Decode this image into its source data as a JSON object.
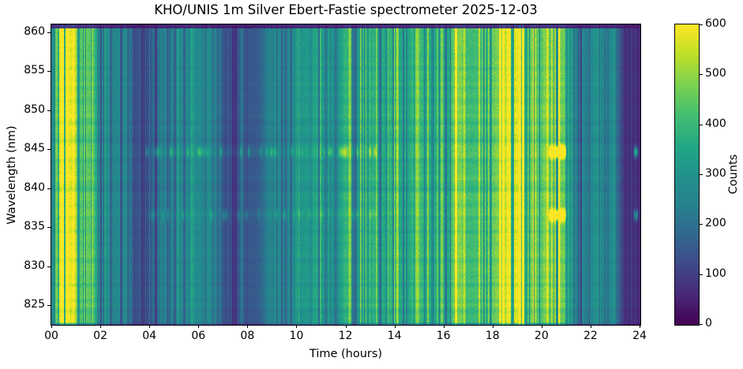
{
  "chart_data": {
    "type": "heatmap",
    "title": "KHO/UNIS 1m Silver Ebert-Fastie spectrometer 2025-12-03",
    "xlabel": "Time (hours)",
    "ylabel": "Wavelength (nm)",
    "colorbar_label": "Counts",
    "colormap": "viridis",
    "x_range_hours": [
      0,
      24
    ],
    "y_range_nm": [
      822.6,
      861.0
    ],
    "counts_range": [
      0,
      600
    ],
    "grid": false,
    "x_axis": {
      "tick_hours": [
        0,
        2,
        4,
        6,
        8,
        10,
        12,
        14,
        16,
        18,
        20,
        22,
        24
      ],
      "tick_labels": [
        "00",
        "02",
        "04",
        "06",
        "08",
        "10",
        "12",
        "14",
        "16",
        "18",
        "20",
        "22",
        "24"
      ]
    },
    "y_axis": {
      "tick_nm": [
        825,
        830,
        835,
        840,
        845,
        850,
        855,
        860
      ],
      "tick_labels": [
        "825",
        "830",
        "835",
        "840",
        "845",
        "850",
        "855",
        "860"
      ]
    },
    "colorbar": {
      "tick_values": [
        0,
        100,
        200,
        300,
        400,
        500,
        600
      ],
      "tick_labels": [
        "0",
        "100",
        "200",
        "300",
        "400",
        "500",
        "600"
      ]
    },
    "colormap_stops": [
      "#440154",
      "#482878",
      "#3e4989",
      "#31688e",
      "#26828e",
      "#21918c",
      "#22a884",
      "#44bf70",
      "#7ad151",
      "#bddf26",
      "#fde725"
    ],
    "background_profile_t_counts": [
      [
        0.0,
        380
      ],
      [
        0.15,
        430
      ],
      [
        0.3,
        520
      ],
      [
        0.45,
        580
      ],
      [
        0.9,
        575
      ],
      [
        1.1,
        520
      ],
      [
        1.25,
        470
      ],
      [
        1.45,
        430
      ],
      [
        1.6,
        480
      ],
      [
        1.75,
        400
      ],
      [
        1.9,
        340
      ],
      [
        2.1,
        300
      ],
      [
        2.3,
        310
      ],
      [
        2.45,
        270
      ],
      [
        2.6,
        250
      ],
      [
        2.8,
        270
      ],
      [
        3.0,
        250
      ],
      [
        3.15,
        200
      ],
      [
        3.3,
        150
      ],
      [
        3.7,
        135
      ],
      [
        4.0,
        145
      ],
      [
        4.15,
        175
      ],
      [
        4.3,
        250
      ],
      [
        4.45,
        215
      ],
      [
        4.6,
        265
      ],
      [
        4.75,
        215
      ],
      [
        4.95,
        240
      ],
      [
        5.2,
        280
      ],
      [
        5.5,
        260
      ],
      [
        5.8,
        280
      ],
      [
        6.1,
        260
      ],
      [
        6.4,
        275
      ],
      [
        6.6,
        240
      ],
      [
        6.8,
        185
      ],
      [
        7.0,
        140
      ],
      [
        7.3,
        135
      ],
      [
        7.55,
        120
      ],
      [
        7.8,
        150
      ],
      [
        8.0,
        130
      ],
      [
        8.3,
        165
      ],
      [
        8.6,
        210
      ],
      [
        9.0,
        250
      ],
      [
        9.5,
        280
      ],
      [
        10.0,
        295
      ],
      [
        10.5,
        305
      ],
      [
        11.0,
        315
      ],
      [
        11.5,
        325
      ],
      [
        12.0,
        335
      ],
      [
        12.5,
        345
      ],
      [
        13.0,
        355
      ],
      [
        13.5,
        360
      ],
      [
        14.0,
        370
      ],
      [
        14.5,
        375
      ],
      [
        15.0,
        380
      ],
      [
        15.5,
        390
      ],
      [
        16.0,
        400
      ],
      [
        16.5,
        420
      ],
      [
        17.0,
        410
      ],
      [
        17.5,
        430
      ],
      [
        18.0,
        425
      ],
      [
        18.35,
        445
      ],
      [
        18.55,
        520
      ],
      [
        18.7,
        595
      ],
      [
        19.1,
        595
      ],
      [
        19.3,
        540
      ],
      [
        19.5,
        480
      ],
      [
        19.7,
        500
      ],
      [
        19.9,
        470
      ],
      [
        20.1,
        490
      ],
      [
        20.4,
        480
      ],
      [
        20.7,
        465
      ],
      [
        20.95,
        450
      ],
      [
        21.1,
        350
      ],
      [
        21.25,
        245
      ],
      [
        21.5,
        230
      ],
      [
        21.8,
        250
      ],
      [
        22.1,
        270
      ],
      [
        22.4,
        290
      ],
      [
        22.7,
        265
      ],
      [
        23.0,
        255
      ],
      [
        23.1,
        180
      ],
      [
        23.25,
        95
      ],
      [
        23.5,
        75
      ],
      [
        24.0,
        80
      ]
    ],
    "emission_lines": [
      {
        "wavelength_nm": 844.7,
        "sigma_nm": 0.45,
        "periods": [
          {
            "start": 3.8,
            "end": 13.3,
            "peak_counts": 160,
            "style": "dashed"
          },
          {
            "start": 20.28,
            "end": 21.0,
            "peak_counts": 640,
            "style": "solid"
          },
          {
            "start": 23.72,
            "end": 23.95,
            "peak_counts": 260,
            "style": "solid"
          }
        ]
      },
      {
        "wavelength_nm": 836.6,
        "sigma_nm": 0.45,
        "periods": [
          {
            "start": 3.8,
            "end": 13.3,
            "peak_counts": 110,
            "style": "dashed"
          },
          {
            "start": 20.28,
            "end": 21.0,
            "peak_counts": 540,
            "style": "solid"
          },
          {
            "start": 23.72,
            "end": 23.95,
            "peak_counts": 190,
            "style": "solid"
          }
        ]
      }
    ],
    "absorption_rows_nm": [
      {
        "nm": 855.4,
        "dip": 0.05
      },
      {
        "nm": 851.3,
        "dip": 0.04
      },
      {
        "nm": 848.4,
        "dip": 0.05
      },
      {
        "nm": 846.1,
        "dip": 0.08
      },
      {
        "nm": 843.6,
        "dip": 0.07
      },
      {
        "nm": 841.9,
        "dip": 0.05
      },
      {
        "nm": 839.9,
        "dip": 0.06
      },
      {
        "nm": 837.8,
        "dip": 0.06
      },
      {
        "nm": 834.5,
        "dip": 0.07
      },
      {
        "nm": 832.8,
        "dip": 0.05
      },
      {
        "nm": 831.0,
        "dip": 0.04
      },
      {
        "nm": 827.7,
        "dip": 0.05
      },
      {
        "nm": 824.4,
        "dip": 0.06
      }
    ],
    "top_dark_band_above_nm": 860.5
  }
}
